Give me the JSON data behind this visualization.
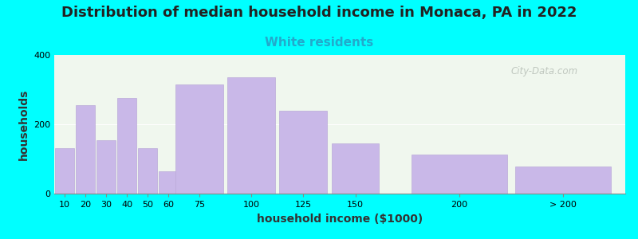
{
  "title": "Distribution of median household income in Monaca, PA in 2022",
  "subtitle": "White residents",
  "xlabel": "household income ($1000)",
  "ylabel": "households",
  "background_outer": "#00FFFF",
  "bar_color": "#c9b8e8",
  "bar_edge_color": "#baaad8",
  "categories": [
    "10",
    "20",
    "30",
    "40",
    "50",
    "60",
    "75",
    "100",
    "125",
    "150",
    "200",
    "> 200"
  ],
  "x_centers": [
    10,
    20,
    30,
    40,
    50,
    60,
    75,
    100,
    125,
    150,
    200,
    250
  ],
  "bar_widths": [
    10,
    10,
    10,
    10,
    10,
    10,
    25,
    25,
    25,
    25,
    50,
    50
  ],
  "values": [
    130,
    255,
    155,
    275,
    130,
    65,
    315,
    335,
    240,
    145,
    113,
    78
  ],
  "ylim": [
    0,
    400
  ],
  "yticks": [
    0,
    200,
    400
  ],
  "xlim_min": 5,
  "xlim_max": 280,
  "title_fontsize": 13,
  "subtitle_fontsize": 11,
  "subtitle_color": "#22aacc",
  "axis_label_fontsize": 10,
  "tick_label_fontsize": 8,
  "watermark_text": "City-Data.com",
  "watermark_color": "#b0b8b0",
  "inner_bg": "#f0f7ee"
}
